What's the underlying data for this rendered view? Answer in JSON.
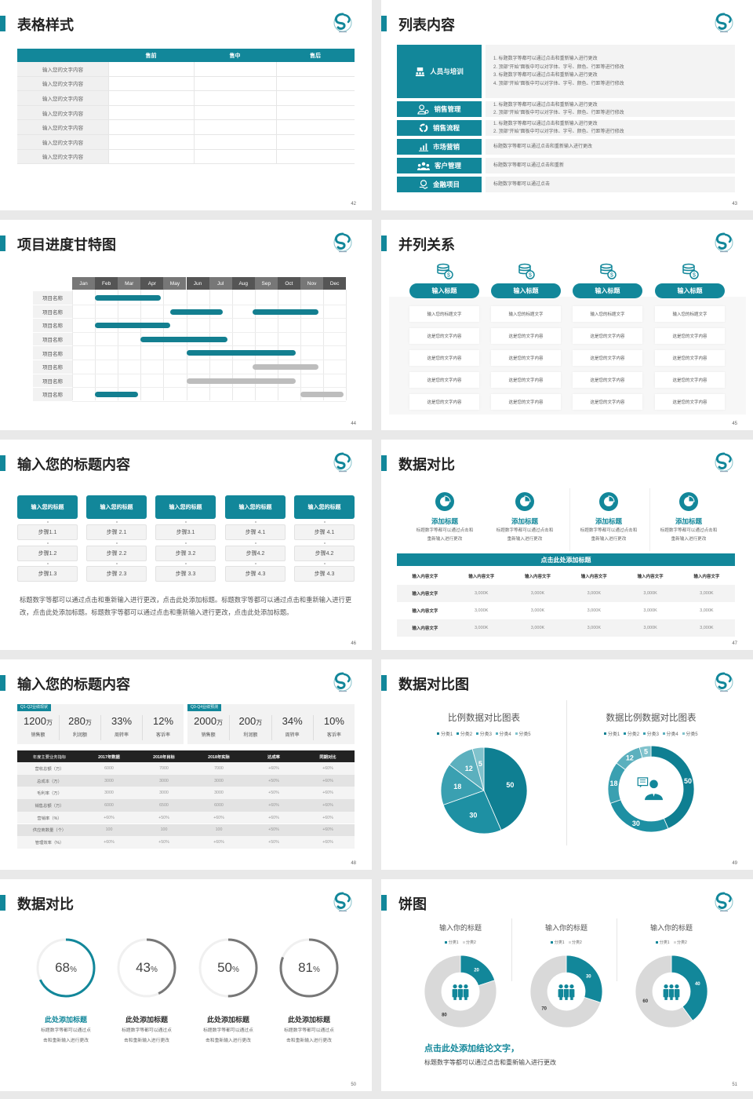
{
  "theme": {
    "accent": "#12879a",
    "dark": "#222222",
    "gray": "#777777",
    "light_gray": "#d9d9d9"
  },
  "logo_icon": "swirl-logo-icon",
  "s42": {
    "title": "表格样式",
    "page": "42",
    "headers": [
      "",
      "售前",
      "售中",
      "售后"
    ],
    "rows": [
      "输入您的文字内容",
      "输入您的文字内容",
      "输入您的文字内容",
      "输入您的文字内容",
      "输入您的文字内容",
      "输入您的文字内容",
      "输入您的文字内容"
    ]
  },
  "s43": {
    "title": "列表内容",
    "page": "43",
    "items": [
      {
        "label": "人员与培训",
        "icon": "training-icon",
        "lines": [
          "1.  标题数字等都可以通过点击和重新输入进行更改",
          "2.  顶部“开始”面板中可以对字体、字号、颜色、行距等进行修改",
          "3.  标题数字等都可以通过点击和重新输入进行更改",
          "4.  顶部“开始”面板中可以对字体、字号、颜色、行距等进行修改"
        ]
      },
      {
        "label": "销售管理",
        "icon": "user-gear-icon",
        "lines": [
          "1.  标题数字等都可以通过点击和重新输入进行更改",
          "2.  顶部“开始”面板中可以对字体、字号、颜色、行距等进行修改"
        ]
      },
      {
        "label": "销售流程",
        "icon": "cycle-icon",
        "lines": [
          "1.  标题数字等都可以通过点击和重新输入进行更改",
          "2.  顶部“开始”面板中可以对字体、字号、颜色、行距等进行修改"
        ]
      },
      {
        "label": "市场营销",
        "icon": "bar-chart-icon",
        "lines": [
          "标题数字等都可以通过点击和重新输入进行更改"
        ]
      },
      {
        "label": "客户管理",
        "icon": "users-icon",
        "lines": [
          "标题数字等都可以通过点击和重新"
        ]
      },
      {
        "label": "金融项目",
        "icon": "coin-hand-icon",
        "lines": [
          "标题数字等都可以通过点击"
        ]
      }
    ]
  },
  "s44": {
    "title": "项目进度甘特图",
    "page": "44",
    "months": [
      "Jan",
      "Feb",
      "Mar",
      "Apr",
      "May",
      "Jun",
      "Jul",
      "Aug",
      "Sep",
      "Oct",
      "Nov",
      "Dec"
    ],
    "tasks": [
      {
        "name": "项目名称",
        "bars": [
          {
            "start": 1.0,
            "end": 3.9,
            "status": "active"
          }
        ]
      },
      {
        "name": "项目名称",
        "bars": [
          {
            "start": 4.3,
            "end": 6.6,
            "status": "active"
          },
          {
            "start": 7.9,
            "end": 10.8,
            "status": "active"
          }
        ]
      },
      {
        "name": "项目名称",
        "bars": [
          {
            "start": 1.0,
            "end": 4.3,
            "status": "active"
          }
        ]
      },
      {
        "name": "项目名称",
        "bars": [
          {
            "start": 3.0,
            "end": 6.8,
            "status": "active"
          }
        ]
      },
      {
        "name": "项目名称",
        "bars": [
          {
            "start": 5.0,
            "end": 9.8,
            "status": "active"
          }
        ]
      },
      {
        "name": "项目名称",
        "bars": [
          {
            "start": 7.9,
            "end": 10.8,
            "status": "planned"
          }
        ]
      },
      {
        "name": "项目名称",
        "bars": [
          {
            "start": 5.0,
            "end": 9.8,
            "status": "planned"
          }
        ]
      },
      {
        "name": "项目名称",
        "bars": [
          {
            "start": 1.0,
            "end": 2.9,
            "status": "active"
          },
          {
            "start": 10.0,
            "end": 11.9,
            "status": "planned"
          }
        ]
      }
    ]
  },
  "s45": {
    "title": "并列关系",
    "page": "45",
    "columns": [
      {
        "heading": "输入标题",
        "cells": [
          "输入您的标题文字",
          "这是您的文字内容",
          "这是您的文字内容",
          "这是您的文字内容",
          "这是您的文字内容"
        ]
      },
      {
        "heading": "输入标题",
        "cells": [
          "输入您的标题文字",
          "这是您的文字内容",
          "这是您的文字内容",
          "这是您的文字内容",
          "这是您的文字内容"
        ]
      },
      {
        "heading": "输入标题",
        "cells": [
          "输入您的标题文字",
          "这是您的文字内容",
          "这是您的文字内容",
          "这是您的文字内容",
          "这是您的文字内容"
        ]
      },
      {
        "heading": "输入标题",
        "cells": [
          "输入您的标题文字",
          "这是您的文字内容",
          "这是您的文字内容",
          "这是您的文字内容",
          "这是您的文字内容"
        ]
      }
    ]
  },
  "s46": {
    "title": "输入您的标题内容",
    "page": "46",
    "columns": [
      {
        "heading": "输入您的标题",
        "steps": [
          "步骤1.1",
          "步骤1.2",
          "步骤1.3"
        ]
      },
      {
        "heading": "输入您的标题",
        "steps": [
          "步骤 2.1",
          "步骤 2.2",
          "步骤 2.3"
        ]
      },
      {
        "heading": "输入您的标题",
        "steps": [
          "步骤3.1",
          "步骤 3.2",
          "步骤 3.3"
        ]
      },
      {
        "heading": "输入您的标题",
        "steps": [
          "步骤 4.1",
          "步骤4.2",
          "步骤 4.3"
        ]
      },
      {
        "heading": "输入您的标题",
        "steps": [
          "步骤 4.1",
          "步骤4.2",
          "步骤 4.3"
        ]
      }
    ],
    "paragraph": "标题数字等都可以通过点击和重新输入进行更改，点击此处添加标题。标题数字等都可以通过点击和重新输入进行更改，点击此处添加标题。标题数字等都可以通过点击和重新输入进行更改，点击此处添加标题。"
  },
  "s47": {
    "title": "数据对比",
    "page": "47",
    "features": [
      {
        "title": "添加标题",
        "desc": "标题数字等都可以通过点击和重新输入进行更改"
      },
      {
        "title": "添加标题",
        "desc": "标题数字等都可以通过点击和重新输入进行更改"
      },
      {
        "title": "添加标题",
        "desc": "标题数字等都可以通过点击和重新输入进行更改"
      },
      {
        "title": "添加标题",
        "desc": "标题数字等都可以通过点击和重新输入进行更改"
      }
    ],
    "table_title": "点击此处添加标题",
    "header": [
      "输入内容文字",
      "输入内容文字",
      "输入内容文字",
      "输入内容文字",
      "输入内容文字",
      "输入内容文字"
    ],
    "rows": [
      [
        "输入内容文字",
        "3,000K",
        "3,000K",
        "3,000K",
        "3,000K",
        "3,000K"
      ],
      [
        "输入内容文字",
        "3,000K",
        "3,000K",
        "3,000K",
        "3,000K",
        "3,000K"
      ],
      [
        "输入内容文字",
        "3,000K",
        "3,000K",
        "3,000K",
        "3,000K",
        "3,000K"
      ]
    ]
  },
  "s48": {
    "title": "输入您的标题内容",
    "page": "48",
    "cards": [
      {
        "tag": "Q1-Q2业绩现状",
        "kpis": [
          {
            "value": "1200",
            "unit": "万",
            "label": "销售额"
          },
          {
            "value": "280",
            "unit": "万",
            "label": "利润额"
          },
          {
            "value": "33%",
            "unit": "",
            "label": "周转率"
          },
          {
            "value": "12%",
            "unit": "",
            "label": "客诉率"
          }
        ]
      },
      {
        "tag": "Q3-Q4业绩预测",
        "kpis": [
          {
            "value": "2000",
            "unit": "万",
            "label": "销售额"
          },
          {
            "value": "200",
            "unit": "万",
            "label": "利润额"
          },
          {
            "value": "34%",
            "unit": "",
            "label": "周转率"
          },
          {
            "value": "10%",
            "unit": "",
            "label": "客诉率"
          }
        ]
      }
    ],
    "table": {
      "header": [
        "年度主要业务指标",
        "2017年数据",
        "2018年目标",
        "2018年实际",
        "达成率",
        "同期对比"
      ],
      "rows": [
        [
          "营收总额（万）",
          "6000",
          "7000",
          "7000",
          "+60%",
          "+60%"
        ],
        [
          "总成本（万）",
          "3000",
          "3000",
          "3000",
          "+50%",
          "+60%"
        ],
        [
          "毛利率（万）",
          "3000",
          "3000",
          "3000",
          "+50%",
          "+60%"
        ],
        [
          "销售总额（万）",
          "6000",
          "6500",
          "6000",
          "+60%",
          "+60%"
        ],
        [
          "营销率（%）",
          "+60%",
          "+50%",
          "+60%",
          "+60%",
          "+60%"
        ],
        [
          "供应商数量（个）",
          "100",
          "100",
          "100",
          "+50%",
          "+60%"
        ],
        [
          "管理效率（%）",
          "+60%",
          "+50%",
          "+60%",
          "+50%",
          "+60%"
        ]
      ]
    }
  },
  "s49": {
    "title": "数据对比图",
    "page": "49"
  },
  "s50": {
    "title": "数据对比",
    "page": "50",
    "items": [
      {
        "percent": 68,
        "title": "此处添加标题",
        "desc1": "标题数字等都可以通过点",
        "desc2": "击和重新输入进行更改",
        "color": "#12879a"
      },
      {
        "percent": 43,
        "title": "此处添加标题",
        "desc1": "标题数字等都可以通过点",
        "desc2": "击和重新输入进行更改",
        "color": "#777777"
      },
      {
        "percent": 50,
        "title": "此处添加标题",
        "desc1": "标题数字等都可以通过点",
        "desc2": "击和重新输入进行更改",
        "color": "#777777"
      },
      {
        "percent": 81,
        "title": "此处添加标题",
        "desc1": "标题数字等都可以通过点",
        "desc2": "击和重新输入进行更改",
        "color": "#777777"
      }
    ],
    "percent_sign": "%"
  },
  "s51": {
    "title": "饼图",
    "page": "51",
    "conclusion": "点击此处添加结论文字，",
    "note": "标题数字等都可以通过点击和重新输入进行更改"
  },
  "chart_data": [
    {
      "type": "pie",
      "title": "比例数据对比图表",
      "categories": [
        "分类1",
        "分类2",
        "分类3",
        "分类4",
        "分类5"
      ],
      "values": [
        50,
        30,
        18,
        12,
        5
      ],
      "legend": "top",
      "colors": [
        "#0f7f92",
        "#1e90a3",
        "#3aa0b1",
        "#5cb0be",
        "#80c2cc"
      ]
    },
    {
      "type": "pie",
      "variant": "donut",
      "title": "数据比例数据对比图表",
      "categories": [
        "分类1",
        "分类2",
        "分类3",
        "分类4",
        "分类5"
      ],
      "values": [
        50,
        30,
        18,
        12,
        5
      ],
      "legend": "top",
      "center_icon": "presenter-icon",
      "colors": [
        "#0f7f92",
        "#1e90a3",
        "#3aa0b1",
        "#5cb0be",
        "#80c2cc"
      ]
    },
    {
      "type": "pie",
      "variant": "donut",
      "title": "输入你的标题",
      "categories": [
        "分类1",
        "分类2"
      ],
      "values": [
        20,
        80
      ],
      "legend": "top",
      "center_icon": "team-icon",
      "colors": [
        "#12879a",
        "#d9d9d9"
      ]
    },
    {
      "type": "pie",
      "variant": "donut",
      "title": "输入你的标题",
      "categories": [
        "分类1",
        "分类2"
      ],
      "values": [
        30,
        70
      ],
      "legend": "top",
      "center_icon": "team-icon",
      "colors": [
        "#12879a",
        "#d9d9d9"
      ]
    },
    {
      "type": "pie",
      "variant": "donut",
      "title": "输入你的标题",
      "categories": [
        "分类1",
        "分类2"
      ],
      "values": [
        40,
        60
      ],
      "legend": "top",
      "center_icon": "team-icon",
      "colors": [
        "#12879a",
        "#d9d9d9"
      ]
    }
  ]
}
